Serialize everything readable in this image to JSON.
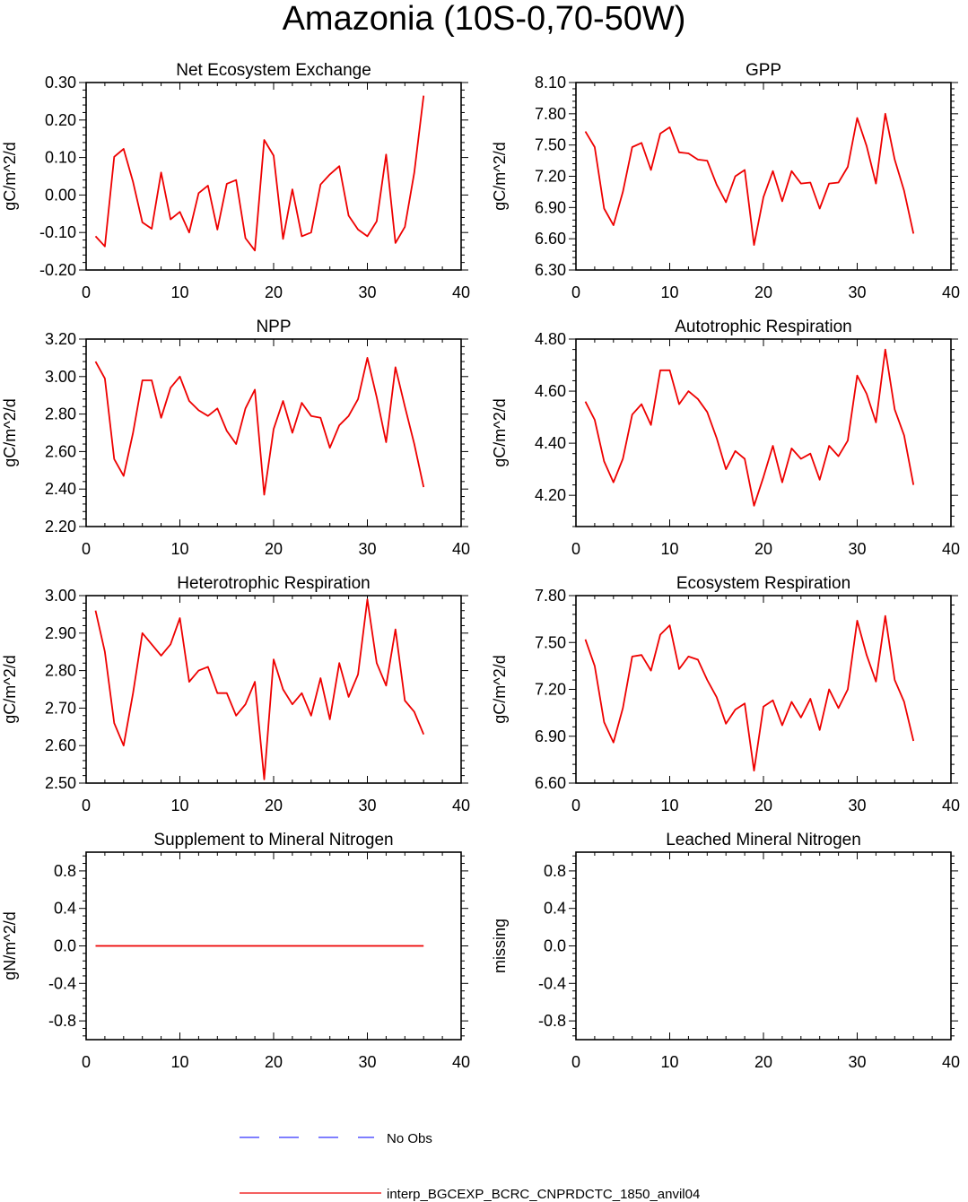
{
  "title": "Amazonia (10S-0,70-50W)",
  "legend": [
    {
      "label": "No Obs",
      "color": "#3333ff",
      "style": "dashed"
    },
    {
      "label": "interp_BGCEXP_BCRC_CNPRDCTC_1850_anvil04",
      "color": "#ee0000",
      "style": "solid"
    }
  ],
  "chart_data": [
    {
      "type": "line",
      "title": "Net Ecosystem Exchange",
      "ylabel": "gC/m^2/d",
      "xlim": [
        0,
        40
      ],
      "xticks": [
        "0",
        "10",
        "20",
        "30",
        "40"
      ],
      "ylim": [
        -0.2,
        0.3
      ],
      "yticks": [
        "-0.20",
        "-0.10",
        "0.00",
        "0.10",
        "0.20",
        "0.30"
      ],
      "x": [
        1,
        2,
        3,
        4,
        5,
        6,
        7,
        8,
        9,
        10,
        11,
        12,
        13,
        14,
        15,
        16,
        17,
        18,
        19,
        20,
        21,
        22,
        23,
        24,
        25,
        26,
        27,
        28,
        29,
        30,
        31,
        32,
        33,
        34,
        35,
        36
      ],
      "series": [
        {
          "name": "interp_BGCEXP_BCRC_CNPRDCTC_1850_anvil04",
          "values": [
            -0.11,
            -0.137,
            0.102,
            0.123,
            0.035,
            -0.073,
            -0.09,
            0.06,
            -0.065,
            -0.045,
            -0.1,
            0.005,
            0.025,
            -0.092,
            0.03,
            0.04,
            -0.115,
            -0.148,
            0.147,
            0.105,
            -0.117,
            0.015,
            -0.11,
            -0.1,
            0.028,
            0.055,
            0.077,
            -0.055,
            -0.092,
            -0.11,
            -0.07,
            0.108,
            -0.128,
            -0.085,
            0.06,
            0.265
          ]
        }
      ]
    },
    {
      "type": "line",
      "title": "GPP",
      "ylabel": "gC/m^2/d",
      "xlim": [
        0,
        40
      ],
      "xticks": [
        "0",
        "10",
        "20",
        "30",
        "40"
      ],
      "ylim": [
        6.3,
        8.1
      ],
      "yticks": [
        "6.30",
        "6.60",
        "6.90",
        "7.20",
        "7.50",
        "7.80",
        "8.10"
      ],
      "x": [
        1,
        2,
        3,
        4,
        5,
        6,
        7,
        8,
        9,
        10,
        11,
        12,
        13,
        14,
        15,
        16,
        17,
        18,
        19,
        20,
        21,
        22,
        23,
        24,
        25,
        26,
        27,
        28,
        29,
        30,
        31,
        32,
        33,
        34,
        35,
        36
      ],
      "series": [
        {
          "name": "interp_BGCEXP_BCRC_CNPRDCTC_1850_anvil04",
          "values": [
            7.63,
            7.48,
            6.89,
            6.73,
            7.05,
            7.48,
            7.52,
            7.26,
            7.61,
            7.67,
            7.43,
            7.42,
            7.36,
            7.35,
            7.12,
            6.95,
            7.2,
            7.26,
            6.54,
            7.0,
            7.25,
            6.96,
            7.25,
            7.13,
            7.14,
            6.89,
            7.13,
            7.14,
            7.29,
            7.76,
            7.49,
            7.13,
            7.8,
            7.36,
            7.06,
            6.65
          ]
        }
      ]
    },
    {
      "type": "line",
      "title": "NPP",
      "ylabel": "gC/m^2/d",
      "xlim": [
        0,
        40
      ],
      "xticks": [
        "0",
        "10",
        "20",
        "30",
        "40"
      ],
      "ylim": [
        2.2,
        3.2
      ],
      "yticks": [
        "2.20",
        "2.40",
        "2.60",
        "2.80",
        "3.00",
        "3.20"
      ],
      "x": [
        1,
        2,
        3,
        4,
        5,
        6,
        7,
        8,
        9,
        10,
        11,
        12,
        13,
        14,
        15,
        16,
        17,
        18,
        19,
        20,
        21,
        22,
        23,
        24,
        25,
        26,
        27,
        28,
        29,
        30,
        31,
        32,
        33,
        34,
        35,
        36
      ],
      "series": [
        {
          "name": "interp_BGCEXP_BCRC_CNPRDCTC_1850_anvil04",
          "values": [
            3.08,
            2.99,
            2.56,
            2.47,
            2.7,
            2.98,
            2.98,
            2.78,
            2.94,
            3.0,
            2.87,
            2.82,
            2.79,
            2.83,
            2.71,
            2.64,
            2.83,
            2.93,
            2.37,
            2.72,
            2.87,
            2.7,
            2.86,
            2.79,
            2.78,
            2.62,
            2.74,
            2.79,
            2.88,
            3.1,
            2.89,
            2.65,
            3.05,
            2.84,
            2.64,
            2.41
          ]
        }
      ]
    },
    {
      "type": "line",
      "title": "Autotrophic Respiration",
      "ylabel": "gC/m^2/d",
      "xlim": [
        0,
        40
      ],
      "xticks": [
        "0",
        "10",
        "20",
        "30",
        "40"
      ],
      "ylim": [
        4.08,
        4.8
      ],
      "yticks": [
        "4.20",
        "4.40",
        "4.60",
        "4.80"
      ],
      "x": [
        1,
        2,
        3,
        4,
        5,
        6,
        7,
        8,
        9,
        10,
        11,
        12,
        13,
        14,
        15,
        16,
        17,
        18,
        19,
        20,
        21,
        22,
        23,
        24,
        25,
        26,
        27,
        28,
        29,
        30,
        31,
        32,
        33,
        34,
        35,
        36
      ],
      "series": [
        {
          "name": "interp_BGCEXP_BCRC_CNPRDCTC_1850_anvil04",
          "values": [
            4.56,
            4.49,
            4.33,
            4.25,
            4.34,
            4.51,
            4.55,
            4.47,
            4.68,
            4.68,
            4.55,
            4.6,
            4.57,
            4.52,
            4.42,
            4.3,
            4.37,
            4.34,
            4.16,
            4.27,
            4.39,
            4.25,
            4.38,
            4.34,
            4.36,
            4.26,
            4.39,
            4.35,
            4.41,
            4.66,
            4.59,
            4.48,
            4.76,
            4.53,
            4.43,
            4.24
          ]
        }
      ]
    },
    {
      "type": "line",
      "title": "Heterotrophic Respiration",
      "ylabel": "gC/m^2/d",
      "xlim": [
        0,
        40
      ],
      "xticks": [
        "0",
        "10",
        "20",
        "30",
        "40"
      ],
      "ylim": [
        2.5,
        3.0
      ],
      "yticks": [
        "2.50",
        "2.60",
        "2.70",
        "2.80",
        "2.90",
        "3.00"
      ],
      "x": [
        1,
        2,
        3,
        4,
        5,
        6,
        7,
        8,
        9,
        10,
        11,
        12,
        13,
        14,
        15,
        16,
        17,
        18,
        19,
        20,
        21,
        22,
        23,
        24,
        25,
        26,
        27,
        28,
        29,
        30,
        31,
        32,
        33,
        34,
        35,
        36
      ],
      "series": [
        {
          "name": "interp_BGCEXP_BCRC_CNPRDCTC_1850_anvil04",
          "values": [
            2.96,
            2.85,
            2.66,
            2.6,
            2.74,
            2.9,
            2.87,
            2.84,
            2.87,
            2.94,
            2.77,
            2.8,
            2.81,
            2.74,
            2.74,
            2.68,
            2.71,
            2.77,
            2.51,
            2.83,
            2.75,
            2.71,
            2.74,
            2.68,
            2.78,
            2.67,
            2.82,
            2.73,
            2.79,
            2.99,
            2.82,
            2.76,
            2.91,
            2.72,
            2.69,
            2.63
          ]
        }
      ]
    },
    {
      "type": "line",
      "title": "Ecosystem Respiration",
      "ylabel": "gC/m^2/d",
      "xlim": [
        0,
        40
      ],
      "xticks": [
        "0",
        "10",
        "20",
        "30",
        "40"
      ],
      "ylim": [
        6.6,
        7.8
      ],
      "yticks": [
        "6.60",
        "6.90",
        "7.20",
        "7.50",
        "7.80"
      ],
      "x": [
        1,
        2,
        3,
        4,
        5,
        6,
        7,
        8,
        9,
        10,
        11,
        12,
        13,
        14,
        15,
        16,
        17,
        18,
        19,
        20,
        21,
        22,
        23,
        24,
        25,
        26,
        27,
        28,
        29,
        30,
        31,
        32,
        33,
        34,
        35,
        36
      ],
      "series": [
        {
          "name": "interp_BGCEXP_BCRC_CNPRDCTC_1850_anvil04",
          "values": [
            7.52,
            7.35,
            6.99,
            6.86,
            7.08,
            7.41,
            7.42,
            7.32,
            7.55,
            7.61,
            7.33,
            7.41,
            7.39,
            7.26,
            7.15,
            6.98,
            7.07,
            7.11,
            6.68,
            7.09,
            7.13,
            6.97,
            7.12,
            7.02,
            7.14,
            6.94,
            7.2,
            7.08,
            7.2,
            7.64,
            7.42,
            7.25,
            7.67,
            7.26,
            7.12,
            6.87
          ]
        }
      ]
    },
    {
      "type": "line",
      "title": "Supplement to Mineral Nitrogen",
      "ylabel": "gN/m^2/d",
      "xlim": [
        0,
        40
      ],
      "xticks": [
        "0",
        "10",
        "20",
        "30",
        "40"
      ],
      "ylim": [
        -1.0,
        1.0
      ],
      "yticks": [
        "-0.8",
        "-0.4",
        "0.0",
        "0.4",
        "0.8"
      ],
      "x": [
        1,
        36
      ],
      "series": [
        {
          "name": "interp_BGCEXP_BCRC_CNPRDCTC_1850_anvil04",
          "values": [
            0.0,
            0.0
          ]
        }
      ]
    },
    {
      "type": "line",
      "title": "Leached Mineral Nitrogen",
      "ylabel": "missing",
      "xlim": [
        0,
        40
      ],
      "xticks": [
        "0",
        "10",
        "20",
        "30",
        "40"
      ],
      "ylim": [
        -1.0,
        1.0
      ],
      "yticks": [
        "-0.8",
        "-0.4",
        "0.0",
        "0.4",
        "0.8"
      ],
      "x": [],
      "series": []
    }
  ]
}
